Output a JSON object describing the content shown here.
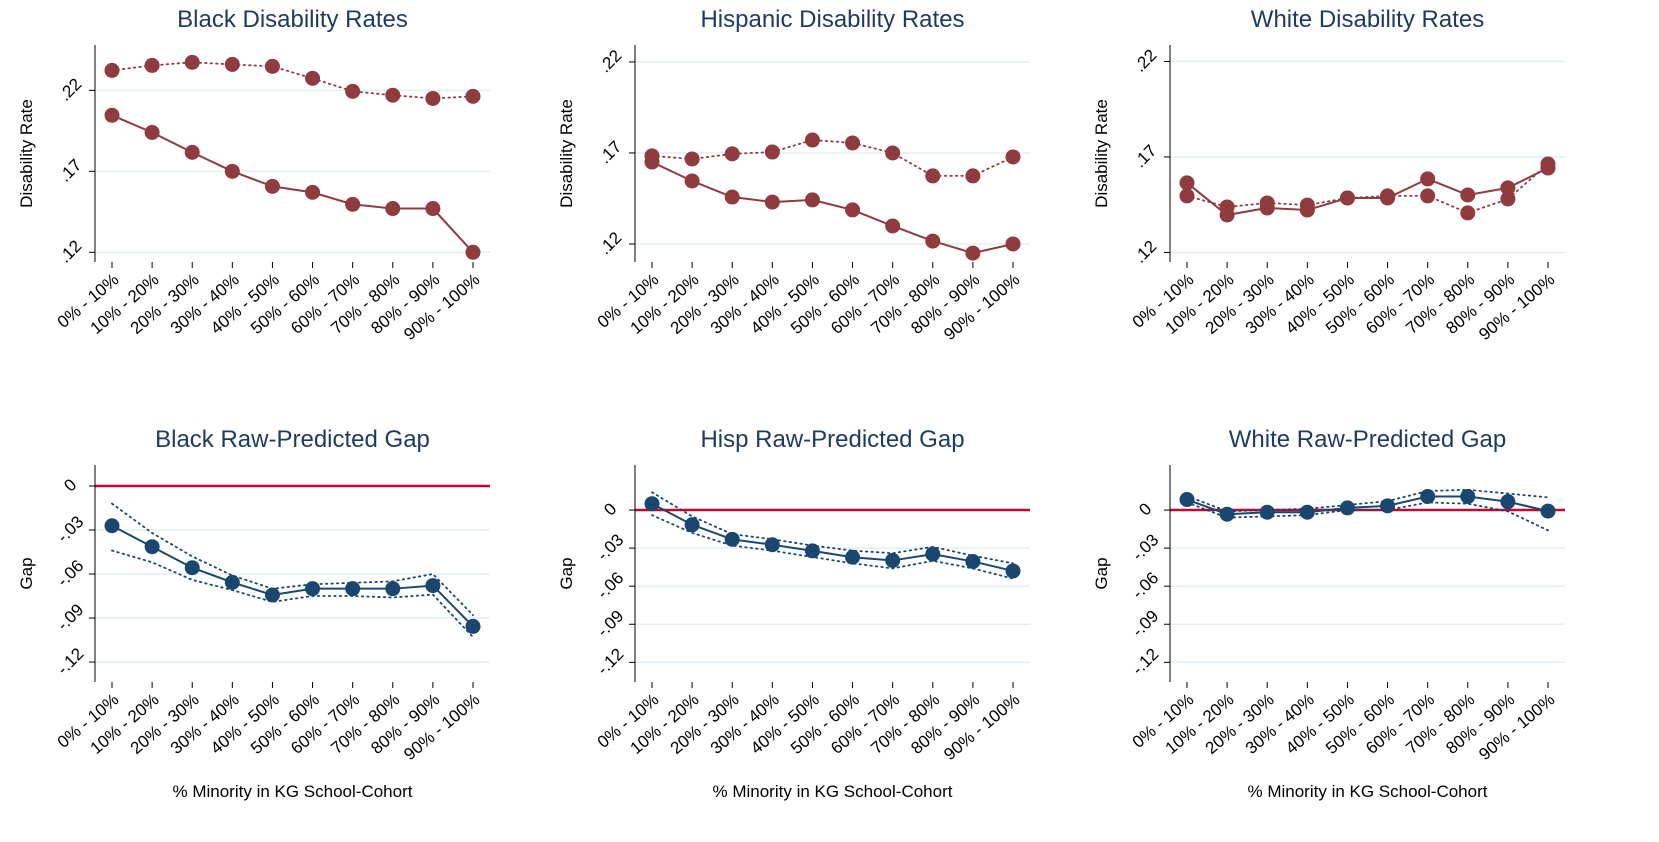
{
  "chart_data": [
    {
      "type": "line",
      "title": "Black Disability Rates",
      "ylabel": "Disability Rate",
      "categories": [
        "0% - 10%",
        "10% - 20%",
        "20% - 30%",
        "30% - 40%",
        "40% - 50%",
        "50% - 60%",
        "60% - 70%",
        "70% - 80%",
        "80% - 90%",
        "90% - 100%"
      ],
      "ylim": [
        0.114,
        0.248
      ],
      "yticks": [
        {
          "value": 0.12,
          "label": ".12"
        },
        {
          "value": 0.17,
          "label": ".17"
        },
        {
          "value": 0.22,
          "label": ".22"
        }
      ],
      "grid": true,
      "series": [
        {
          "color": "#8f3b40",
          "style": "solid",
          "markers": true,
          "values": [
            0.2046,
            0.194,
            0.1817,
            0.17,
            0.1607,
            0.157,
            0.1496,
            0.147,
            0.147,
            0.12
          ]
        },
        {
          "color": "#8f3b40",
          "style": "dotted",
          "markers": true,
          "values": [
            0.2323,
            0.2354,
            0.2373,
            0.236,
            0.2348,
            0.2274,
            0.2194,
            0.217,
            0.215,
            0.2163
          ]
        }
      ]
    },
    {
      "type": "line",
      "title": "Hispanic Disability Rates",
      "ylabel": "Disability Rate",
      "categories": [
        "0% - 10%",
        "10% - 20%",
        "20% - 30%",
        "30% - 40%",
        "40% - 50%",
        "50% - 60%",
        "60% - 70%",
        "70% - 80%",
        "80% - 90%",
        "90% - 100%"
      ],
      "ylim": [
        0.1101,
        0.2293
      ],
      "yticks": [
        {
          "value": 0.12,
          "label": ".12"
        },
        {
          "value": 0.17,
          "label": ".17"
        },
        {
          "value": 0.22,
          "label": ".22"
        }
      ],
      "grid": true,
      "series": [
        {
          "color": "#8f3b40",
          "style": "solid",
          "markers": true,
          "values": [
            0.165,
            0.1546,
            0.1458,
            0.143,
            0.1442,
            0.1387,
            0.1299,
            0.1216,
            0.115,
            0.12
          ]
        },
        {
          "color": "#8f3b40",
          "style": "dotted",
          "markers": true,
          "values": [
            0.1684,
            0.1667,
            0.1695,
            0.1705,
            0.1771,
            0.1755,
            0.17,
            0.1574,
            0.1574,
            0.1678
          ]
        }
      ]
    },
    {
      "type": "line",
      "title": "White Disability Rates",
      "ylabel": "Disability Rate",
      "categories": [
        "0% - 10%",
        "10% - 20%",
        "20% - 30%",
        "30% - 40%",
        "40% - 50%",
        "50% - 60%",
        "60% - 70%",
        "70% - 80%",
        "80% - 90%",
        "90% - 100%"
      ],
      "ylim": [
        0.115,
        0.2286
      ],
      "yticks": [
        {
          "value": 0.12,
          "label": ".12"
        },
        {
          "value": 0.17,
          "label": ".17"
        },
        {
          "value": 0.22,
          "label": ".22"
        }
      ],
      "grid": true,
      "series": [
        {
          "color": "#8f3b40",
          "style": "solid",
          "markers": true,
          "values": [
            0.1564,
            0.1396,
            0.1433,
            0.1422,
            0.1485,
            0.1485,
            0.1585,
            0.1501,
            0.1538,
            0.1642
          ]
        },
        {
          "color": "#8f3b40",
          "style": "dotted",
          "markers": true,
          "values": [
            0.1496,
            0.1438,
            0.1459,
            0.1448,
            0.1485,
            0.1496,
            0.1496,
            0.1407,
            0.148,
            0.1663
          ]
        }
      ]
    },
    {
      "type": "line",
      "title": "Black Raw-Predicted Gap",
      "ylabel": "Gap",
      "xlabel": "% Minority in KG School-Cohort",
      "categories": [
        "0% - 10%",
        "10% - 20%",
        "20% - 30%",
        "30% - 40%",
        "40% - 50%",
        "50% - 60%",
        "60% - 70%",
        "70% - 80%",
        "80% - 90%",
        "90% - 100%"
      ],
      "ylim": [
        -0.1336,
        0.0143
      ],
      "yticks": [
        {
          "value": -0.12,
          "label": "-.12"
        },
        {
          "value": -0.09,
          "label": "-.09"
        },
        {
          "value": -0.06,
          "label": "-.06"
        },
        {
          "value": -0.03,
          "label": "-.03"
        },
        0
      ],
      "grid": true,
      "refline": 0,
      "refline_color": "#c10534",
      "series": [
        {
          "color": "#1a476f",
          "style": "solid",
          "markers": true,
          "values": [
            -0.0271,
            -0.0414,
            -0.0557,
            -0.0657,
            -0.0743,
            -0.07,
            -0.07,
            -0.07,
            -0.0679,
            -0.0957
          ]
        },
        {
          "color": "#1a476f",
          "style": "dotted",
          "markers": false,
          "values": [
            -0.012,
            -0.032,
            -0.048,
            -0.061,
            -0.07,
            -0.067,
            -0.066,
            -0.065,
            -0.06,
            -0.088
          ]
        },
        {
          "color": "#1a476f",
          "style": "dotted",
          "markers": false,
          "values": [
            -0.044,
            -0.052,
            -0.064,
            -0.071,
            -0.079,
            -0.075,
            -0.075,
            -0.076,
            -0.074,
            -0.103
          ]
        }
      ]
    },
    {
      "type": "line",
      "title": "Hisp Raw-Predicted Gap",
      "ylabel": "Gap",
      "xlabel": "% Minority in KG School-Cohort",
      "categories": [
        "0% - 10%",
        "10% - 20%",
        "20% - 30%",
        "30% - 40%",
        "40% - 50%",
        "50% - 60%",
        "60% - 70%",
        "70% - 80%",
        "80% - 90%",
        "90% - 100%"
      ],
      "ylim": [
        -0.1355,
        0.0355
      ],
      "yticks": [
        {
          "value": -0.12,
          "label": "-.12"
        },
        {
          "value": -0.09,
          "label": "-.09"
        },
        {
          "value": -0.06,
          "label": "-.06"
        },
        {
          "value": -0.03,
          "label": "-.03"
        },
        0
      ],
      "grid": true,
      "refline": 0,
      "refline_color": "#c10534",
      "series": [
        {
          "color": "#1a476f",
          "style": "solid",
          "markers": true,
          "values": [
            0.005,
            -0.0116,
            -0.0231,
            -0.0273,
            -0.0322,
            -0.0372,
            -0.0397,
            -0.0347,
            -0.0405,
            -0.048
          ]
        },
        {
          "color": "#1a476f",
          "style": "dotted",
          "markers": false,
          "values": [
            0.014,
            -0.005,
            -0.019,
            -0.023,
            -0.028,
            -0.032,
            -0.034,
            -0.029,
            -0.036,
            -0.042
          ]
        },
        {
          "color": "#1a476f",
          "style": "dotted",
          "markers": false,
          "values": [
            -0.004,
            -0.018,
            -0.028,
            -0.032,
            -0.037,
            -0.042,
            -0.046,
            -0.04,
            -0.046,
            -0.054
          ]
        }
      ]
    },
    {
      "type": "line",
      "title": "White Raw-Predicted Gap",
      "ylabel": "Gap",
      "xlabel": "% Minority in KG School-Cohort",
      "categories": [
        "0% - 10%",
        "10% - 20%",
        "20% - 30%",
        "30% - 40%",
        "40% - 50%",
        "50% - 60%",
        "60% - 70%",
        "70% - 80%",
        "80% - 90%",
        "90% - 100%"
      ],
      "ylim": [
        -0.1355,
        0.0355
      ],
      "yticks": [
        {
          "value": -0.12,
          "label": "-.12"
        },
        {
          "value": -0.09,
          "label": "-.09"
        },
        {
          "value": -0.06,
          "label": "-.06"
        },
        {
          "value": -0.03,
          "label": "-.03"
        },
        0
      ],
      "grid": true,
      "refline": 0,
      "refline_color": "#c10534",
      "series": [
        {
          "color": "#1a476f",
          "style": "solid",
          "markers": true,
          "values": [
            0.0083,
            -0.0033,
            -0.0017,
            -0.0017,
            0.0017,
            0.0033,
            0.0107,
            0.0107,
            0.0066,
            -0.0008
          ]
        },
        {
          "color": "#1a476f",
          "style": "dotted",
          "markers": false,
          "values": [
            0.011,
            -0.001,
            0,
            0.001,
            0.004,
            0.007,
            0.015,
            0.016,
            0.013,
            0.01
          ]
        },
        {
          "color": "#1a476f",
          "style": "dotted",
          "markers": false,
          "values": [
            0.006,
            -0.006,
            -0.005,
            -0.004,
            0,
            0,
            0.006,
            0.005,
            -0.001,
            -0.016
          ]
        }
      ]
    }
  ]
}
